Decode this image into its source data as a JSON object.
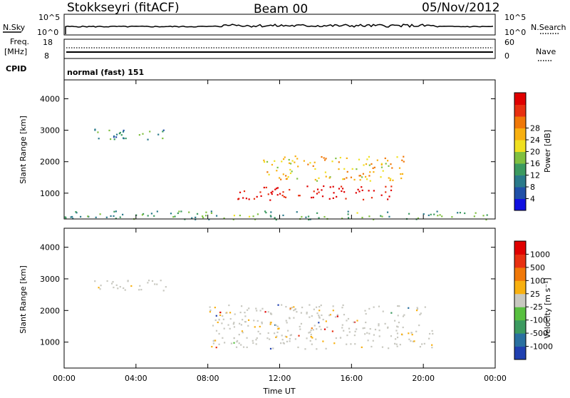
{
  "header": {
    "station": "Stokkseyri (fitACF)",
    "beam": "Beam 00",
    "date": "05/Nov/2012"
  },
  "param_panels": {
    "nsky_label": "N.Sky",
    "nsky_ticks": [
      "10^5",
      "10^0"
    ],
    "nsearch_label": "N.Search",
    "freq_label_1": "Freq.",
    "freq_label_2": "[MHz]",
    "freq_ticks": [
      "18",
      "8"
    ],
    "nave_ticks": [
      "60",
      "0"
    ],
    "nave_label": "Nave",
    "cpid_label": "CPID",
    "cpid_text": "normal (fast) 151"
  },
  "chart_data": [
    {
      "type": "heatmap",
      "title": "",
      "ylabel": "Slant Range [km]",
      "xlabel": "Time UT",
      "x_ticks": [
        "00:00",
        "04:00",
        "08:00",
        "12:00",
        "16:00",
        "20:00",
        "00:00"
      ],
      "y_ticks": [
        1000,
        2000,
        3000,
        4000
      ],
      "ylim": [
        180,
        4600
      ],
      "xlim_hours": [
        0,
        24
      ],
      "colorbar": {
        "label": "Power [dB]",
        "ticks": [
          4,
          8,
          12,
          16,
          20,
          24,
          28
        ],
        "colors": [
          "#1010e0",
          "#2050a8",
          "#2a7a8a",
          "#3c9a60",
          "#80c040",
          "#f0e020",
          "#f8b010",
          "#f07808",
          "#e83010",
          "#e00000"
        ]
      },
      "regions": [
        {
          "name": "evening echoes",
          "t": [
            1.5,
            6.0
          ],
          "range_km": [
            2700,
            3050
          ],
          "level_db": 8
        },
        {
          "name": "near-range clutter",
          "t": [
            0.0,
            24.0
          ],
          "range_km": [
            180,
            450
          ],
          "level_db": 10
        },
        {
          "name": "main band",
          "t": [
            9.5,
            18.5
          ],
          "range_km": [
            800,
            1250
          ],
          "level_db": 30
        },
        {
          "name": "upper band",
          "t": [
            11.0,
            19.0
          ],
          "range_km": [
            1400,
            2200
          ],
          "level_db": 18
        }
      ]
    },
    {
      "type": "heatmap",
      "title": "",
      "ylabel": "Slant Range [km]",
      "xlabel": "Time UT",
      "x_ticks": [
        "00:00",
        "04:00",
        "08:00",
        "12:00",
        "16:00",
        "20:00",
        "00:00"
      ],
      "y_ticks": [
        1000,
        2000,
        3000,
        4000
      ],
      "ylim": [
        180,
        4600
      ],
      "xlim_hours": [
        0,
        24
      ],
      "colorbar": {
        "label": "Velocity [m s⁻¹]",
        "ticks": [
          "1000",
          "500",
          "100",
          "25",
          "-25",
          "-100",
          "-500",
          "-1000"
        ],
        "colors": [
          "#2040b0",
          "#2a70a0",
          "#3c9a60",
          "#58c040",
          "#c8c8c0",
          "#f8b010",
          "#f07808",
          "#e83010",
          "#e00000"
        ]
      },
      "regions": [
        {
          "name": "evening echoes",
          "t": [
            1.5,
            6.0
          ],
          "range_km": [
            2650,
            3000
          ],
          "velocity": "0"
        },
        {
          "name": "main band",
          "t": [
            8.0,
            20.5
          ],
          "range_km": [
            800,
            2200
          ],
          "velocity": "0"
        }
      ]
    }
  ]
}
